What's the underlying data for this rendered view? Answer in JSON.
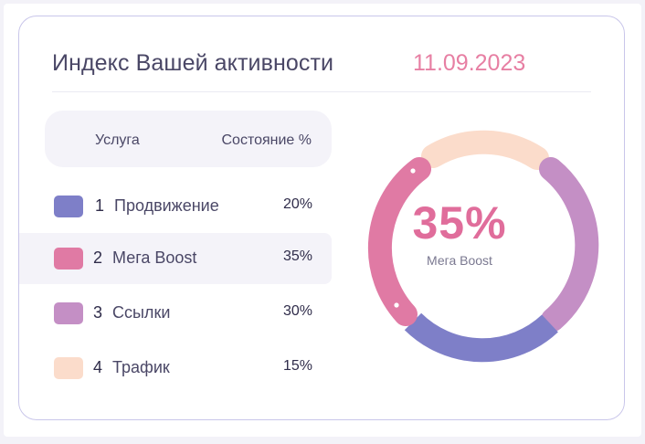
{
  "header": {
    "title": "Индекс Вашей активности",
    "date": "11.09.2023"
  },
  "table": {
    "col_service": "Услуга",
    "col_state": "Состояние %",
    "rows": [
      {
        "num": "1",
        "name": "Продвижение",
        "percent": "20%",
        "value": 20,
        "color": "#7e7fc8"
      },
      {
        "num": "2",
        "name": "Мега Boost",
        "percent": "35%",
        "value": 35,
        "color": "#e07aa4",
        "selected": true
      },
      {
        "num": "3",
        "name": "Ссылки",
        "percent": "30%",
        "value": 30,
        "color": "#c48fc5"
      },
      {
        "num": "4",
        "name": "Трафик",
        "percent": "15%",
        "value": 15,
        "color": "#fbdccb"
      }
    ]
  },
  "donut": {
    "center_value": "35%",
    "center_label": "Мега Boost"
  },
  "colors": {
    "accent": "#e06d9b",
    "border": "#c9c6ea",
    "text": "#4a4766"
  }
}
